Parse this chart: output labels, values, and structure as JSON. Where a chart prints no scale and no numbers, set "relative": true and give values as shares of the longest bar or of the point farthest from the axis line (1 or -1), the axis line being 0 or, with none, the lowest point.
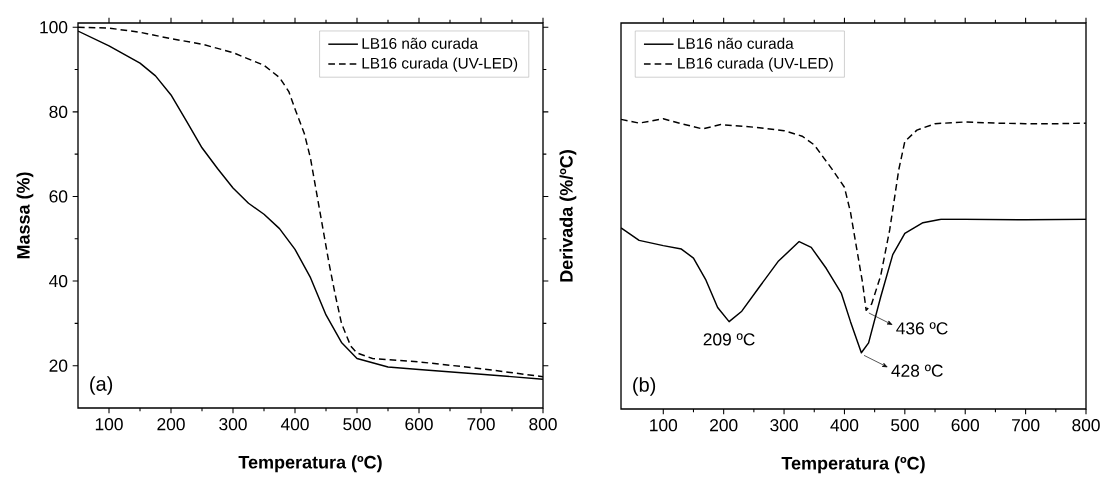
{
  "chart_data": [
    {
      "type": "line",
      "xlabel": "Temperatura (ºC)",
      "ylabel": "Massa (%)",
      "xlim": [
        50,
        800
      ],
      "ylim": [
        10,
        101
      ],
      "xticks": [
        100,
        200,
        300,
        400,
        500,
        600,
        700,
        800
      ],
      "yticks": [
        20,
        40,
        60,
        80,
        100
      ],
      "legend": "top right",
      "grid": false,
      "annotations": [
        "(a)"
      ],
      "series": [
        {
          "name": "LB16 não curada",
          "color": "#000000",
          "line_style": "solid",
          "x": [
            50,
            100,
            150,
            175,
            200,
            225,
            250,
            275,
            300,
            325,
            350,
            375,
            400,
            425,
            450,
            475,
            500,
            550,
            600,
            700,
            800
          ],
          "values": [
            99.1,
            95.6,
            91.5,
            88.5,
            84,
            77.8,
            71.5,
            66.6,
            62,
            58.4,
            55.8,
            52.4,
            47.5,
            40.8,
            32,
            25.5,
            21.7,
            19.7,
            19.1,
            18,
            16.8
          ]
        },
        {
          "name": "LB16 curada (UV-LED)",
          "color": "#000000",
          "line_style": "dashed",
          "x": [
            50,
            100,
            150,
            200,
            250,
            300,
            350,
            375,
            390,
            400,
            415,
            425,
            435,
            445,
            455,
            465,
            475,
            490,
            500,
            525,
            600,
            700,
            800
          ],
          "values": [
            100,
            99.8,
            98.8,
            97.3,
            96,
            94,
            91,
            88.1,
            84.8,
            80.7,
            74.9,
            69,
            60.7,
            52.4,
            44.1,
            36.7,
            30,
            24.6,
            23,
            21.7,
            20.9,
            19.3,
            17.4
          ]
        }
      ]
    },
    {
      "type": "line",
      "relative": true,
      "xlabel": "Temperatura (ºC)",
      "ylabel": "Derivada (%/ºC)",
      "xlim": [
        30,
        800
      ],
      "xticks": [
        100,
        200,
        300,
        400,
        500,
        600,
        700,
        800
      ],
      "legend": "top left",
      "grid": false,
      "annotations": [
        "(b)",
        {
          "text": "209 ºC",
          "x": 209,
          "y": 0.301
        },
        {
          "text": "436 ºC",
          "x": 436,
          "y": 0.34
        },
        {
          "text": "428 ºC",
          "x": 428,
          "y": 0.194
        }
      ],
      "series": [
        {
          "name": "LB16 não curada",
          "color": "#000000",
          "line_style": "solid",
          "x": [
            30,
            60,
            100,
            130,
            150,
            170,
            190,
            209,
            230,
            260,
            290,
            325,
            345,
            370,
            395,
            410,
            428,
            440,
            460,
            480,
            500,
            530,
            560,
            600,
            700,
            800
          ],
          "values": [
            0.624,
            0.581,
            0.563,
            0.551,
            0.52,
            0.447,
            0.35,
            0.301,
            0.337,
            0.423,
            0.508,
            0.577,
            0.557,
            0.484,
            0.398,
            0.301,
            0.194,
            0.228,
            0.386,
            0.532,
            0.605,
            0.642,
            0.654,
            0.654,
            0.652,
            0.654
          ]
        },
        {
          "name": "LB16 curada (UV-LED)",
          "color": "#000000",
          "line_style": "dashed",
          "x": [
            30,
            60,
            100,
            130,
            165,
            195,
            250,
            300,
            330,
            350,
            380,
            400,
            410,
            420,
            430,
            436,
            445,
            460,
            475,
            490,
            500,
            520,
            550,
            600,
            650,
            700,
            750,
            800
          ],
          "values": [
            0.998,
            0.985,
            1.0,
            0.983,
            0.965,
            0.98,
            0.971,
            0.959,
            0.94,
            0.91,
            0.825,
            0.764,
            0.678,
            0.556,
            0.435,
            0.34,
            0.362,
            0.459,
            0.618,
            0.825,
            0.922,
            0.961,
            0.983,
            0.989,
            0.985,
            0.983,
            0.983,
            0.985
          ]
        }
      ]
    }
  ]
}
